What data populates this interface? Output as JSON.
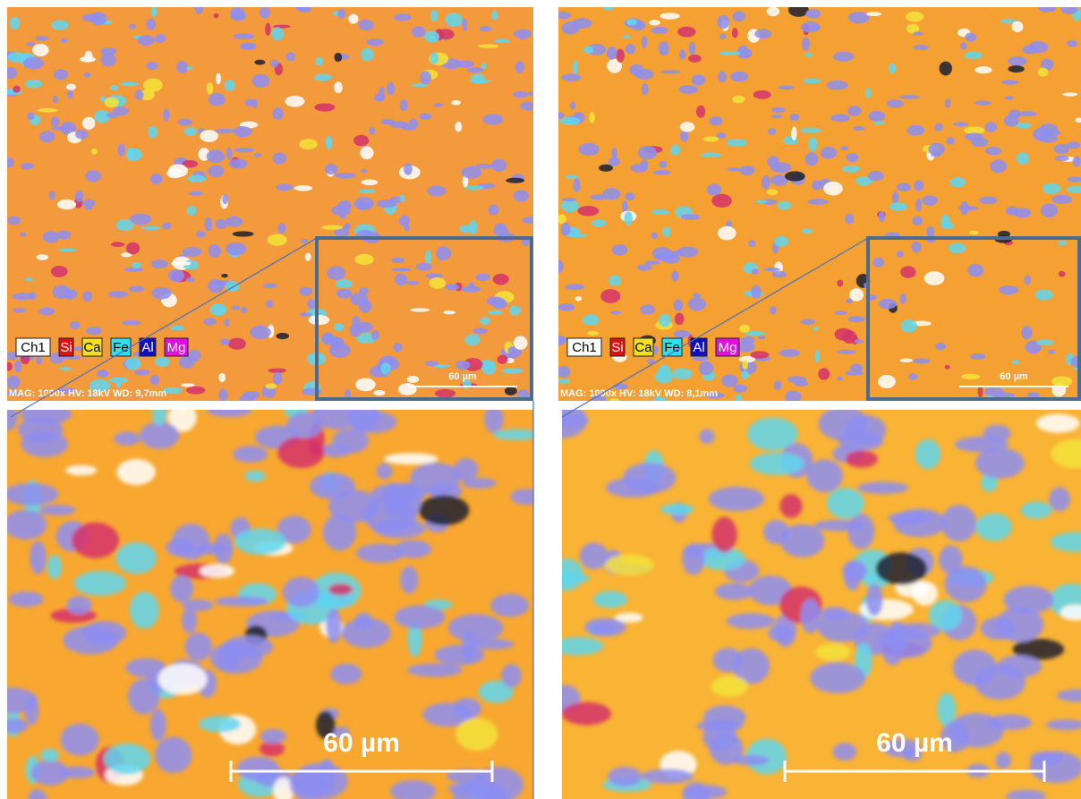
{
  "overview_panels": [
    {
      "legend": [
        "Ch1",
        "Si",
        "Ca",
        "Fe",
        "Al",
        "Mg"
      ],
      "info": "MAG: 1000x  HV: 18kV  WD: 9,7mm",
      "scale_bar": "60 µm"
    },
    {
      "legend": [
        "Ch1",
        "Si",
        "Ca",
        "Fe",
        "Al",
        "Mg"
      ],
      "info": "MAG: 1000x  HV: 18kV  WD: 8,1mm",
      "scale_bar": "60 µm"
    }
  ],
  "zoom_panels": [
    {
      "scale_bar": "60 µm"
    },
    {
      "scale_bar": "60 µm"
    }
  ]
}
